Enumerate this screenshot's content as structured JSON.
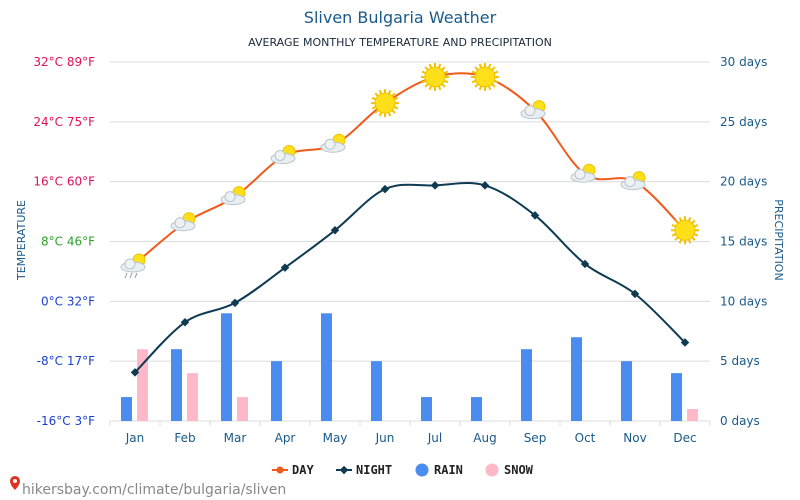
{
  "title": "Sliven Bulgaria Weather",
  "subtitle": "AVERAGE MONTHLY TEMPERATURE AND PRECIPITATION",
  "ylabel_left": "TEMPERATURE",
  "ylabel_right": "PRECIPITATION",
  "watermark": "hikersbay.com/climate/bulgaria/sliven",
  "colors": {
    "title": "#1a5a8a",
    "day": "#f05a1a",
    "night": "#0e3a52",
    "rain": "#4a8cf0",
    "snow": "#ffb8c8",
    "grid": "#dcdcdc",
    "tick_warm": "#e0105a",
    "tick_mild": "#2ca02c",
    "tick_cold": "#1a3fd0"
  },
  "legend": [
    {
      "key": "day",
      "label": "DAY",
      "icon": "line-marker-icon"
    },
    {
      "key": "night",
      "label": "NIGHT",
      "icon": "line-marker-icon"
    },
    {
      "key": "rain",
      "label": "RAIN",
      "icon": "circle-icon"
    },
    {
      "key": "snow",
      "label": "SNOW",
      "icon": "circle-icon"
    }
  ],
  "chart_data": {
    "type": "line+bar",
    "categories": [
      "Jan",
      "Feb",
      "Mar",
      "Apr",
      "May",
      "Jun",
      "Jul",
      "Aug",
      "Sep",
      "Oct",
      "Nov",
      "Dec"
    ],
    "left_axis": {
      "unit": "°C",
      "ylim": [
        -16,
        32
      ],
      "ticks": [
        {
          "value": 32,
          "label": "32°C 89°F",
          "tone": "warm"
        },
        {
          "value": 24,
          "label": "24°C 75°F",
          "tone": "warm"
        },
        {
          "value": 16,
          "label": "16°C 60°F",
          "tone": "warm"
        },
        {
          "value": 8,
          "label": "8°C 46°F",
          "tone": "mild"
        },
        {
          "value": 0,
          "label": "0°C 32°F",
          "tone": "cold"
        },
        {
          "value": -8,
          "label": "-8°C 17°F",
          "tone": "cold"
        },
        {
          "value": -16,
          "label": "-16°C 3°F",
          "tone": "cold"
        }
      ]
    },
    "right_axis": {
      "unit": "days",
      "ylim": [
        0,
        30
      ],
      "ticks": [
        {
          "value": 30,
          "label": "30 days"
        },
        {
          "value": 25,
          "label": "25 days"
        },
        {
          "value": 20,
          "label": "20 days"
        },
        {
          "value": 15,
          "label": "15 days"
        },
        {
          "value": 10,
          "label": "10 days"
        },
        {
          "value": 5,
          "label": "5 days"
        },
        {
          "value": 0,
          "label": "0 days"
        }
      ]
    },
    "series": [
      {
        "name": "DAY",
        "axis": "left",
        "kind": "line",
        "values": [
          5,
          10.5,
          14,
          19.5,
          21,
          26.5,
          30,
          30,
          25.5,
          17,
          16,
          9.5
        ]
      },
      {
        "name": "NIGHT",
        "axis": "left",
        "kind": "line",
        "values": [
          -9.5,
          -2.8,
          -0.2,
          4.5,
          9.5,
          15,
          15.5,
          15.5,
          11.5,
          5,
          1,
          -5.5
        ]
      },
      {
        "name": "RAIN",
        "axis": "right",
        "kind": "bar",
        "values": [
          2,
          6,
          9,
          5,
          9,
          5,
          2,
          2,
          6,
          7,
          5,
          4
        ]
      },
      {
        "name": "SNOW",
        "axis": "right",
        "kind": "bar",
        "values": [
          6,
          4,
          2,
          0,
          0,
          0,
          0,
          0,
          0,
          0,
          0,
          1
        ]
      }
    ],
    "weather_icons": [
      "partly-cloudy-rain-icon",
      "partly-cloudy-icon",
      "partly-cloudy-icon",
      "partly-cloudy-icon",
      "partly-cloudy-icon",
      "sun-icon",
      "sun-icon",
      "sun-icon",
      "partly-cloudy-icon",
      "partly-cloudy-icon",
      "partly-cloudy-icon",
      "sun-icon"
    ],
    "grid": true,
    "legend_position": "bottom-center"
  }
}
